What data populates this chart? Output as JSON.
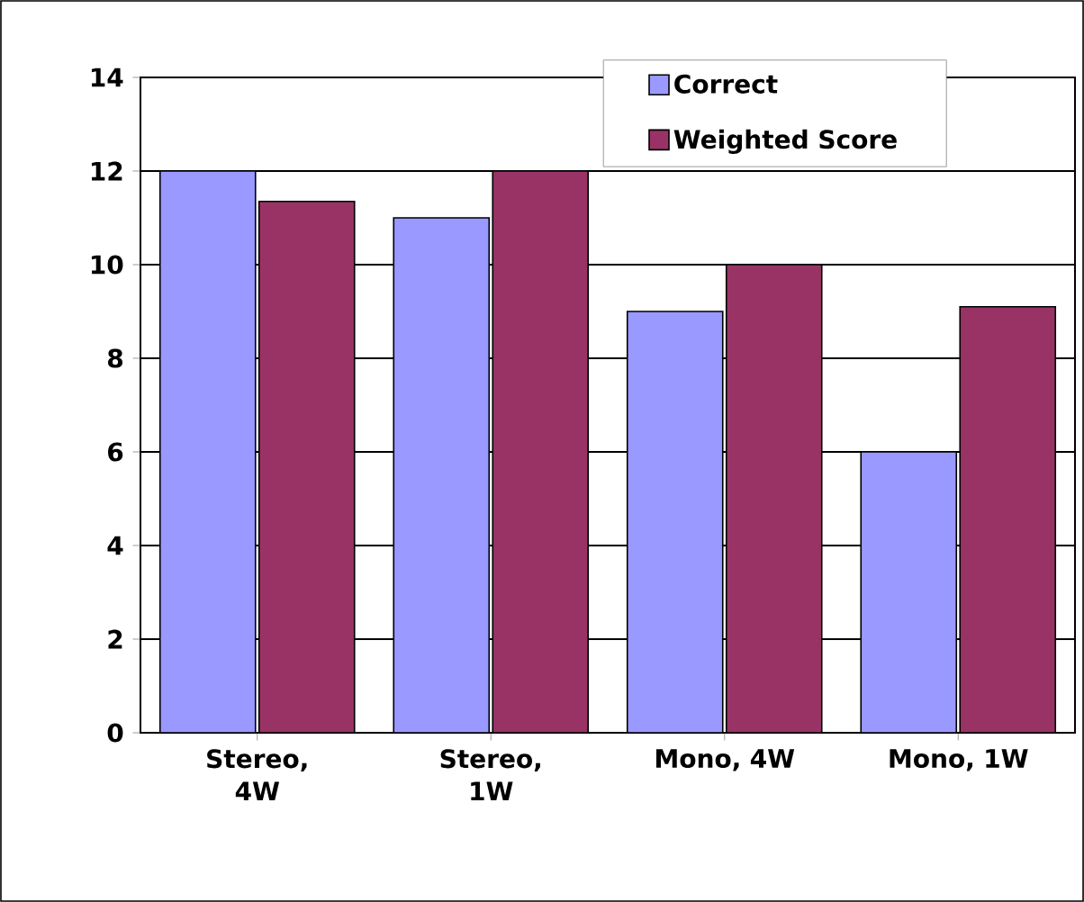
{
  "chart_data": {
    "type": "bar",
    "categories": [
      "Stereo, 4W",
      "Stereo, 1W",
      "Mono, 4W",
      "Mono, 1W"
    ],
    "series": [
      {
        "name": "Correct",
        "color": "#9999ff",
        "values": [
          12,
          11,
          9,
          6
        ]
      },
      {
        "name": "Weighted Score",
        "color": "#993366",
        "values": [
          11.35,
          12,
          10,
          9.1
        ]
      }
    ],
    "ylim": [
      0,
      14
    ],
    "yticks": [
      0,
      2,
      4,
      6,
      8,
      10,
      12,
      14
    ],
    "grid": "y",
    "legend": "top right"
  }
}
